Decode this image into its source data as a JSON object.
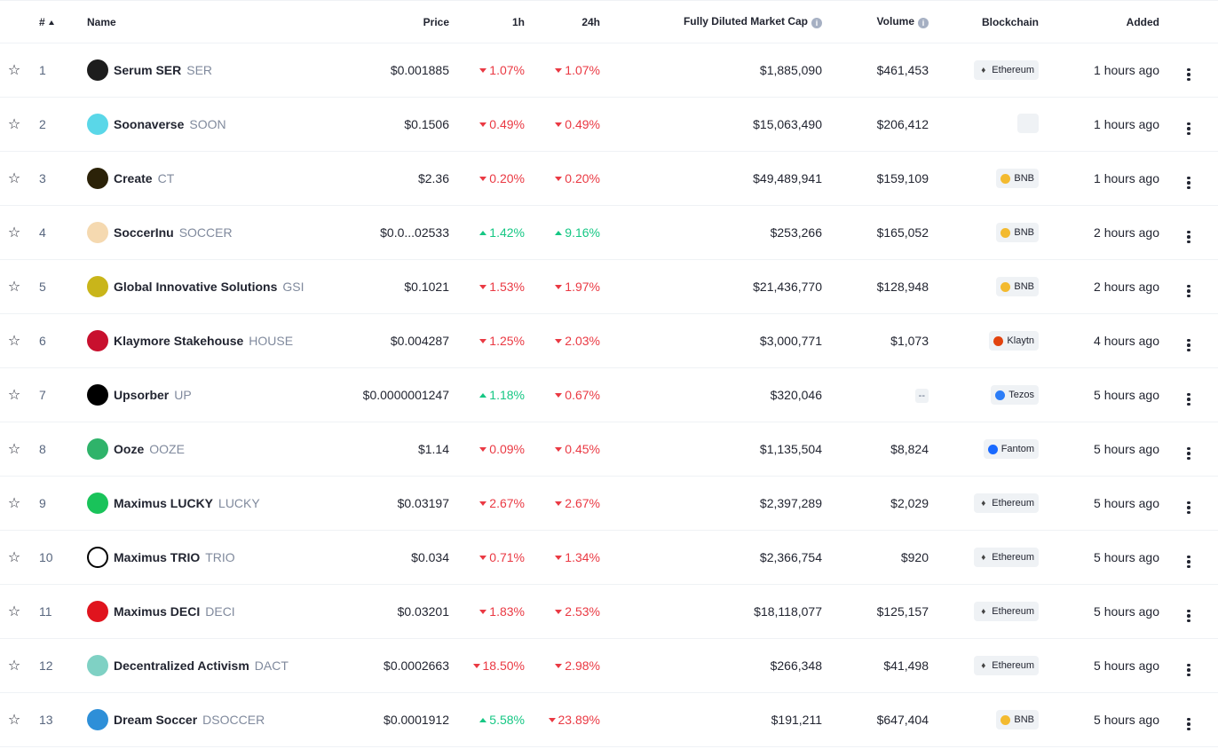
{
  "header": {
    "rank": "#",
    "name": "Name",
    "price": "Price",
    "h1": "1h",
    "h24": "24h",
    "mcap": "Fully Diluted Market Cap",
    "volume": "Volume",
    "chain": "Blockchain",
    "added": "Added"
  },
  "colors": {
    "down": "#ea3943",
    "up": "#16c784",
    "muted": "#808a9d"
  },
  "rows": [
    {
      "rank": "1",
      "name": "Serum SER",
      "symbol": "SER",
      "icon": "serum-icon",
      "iconColor": "#1d1d1d",
      "price": "$0.001885",
      "h1": "1.07%",
      "h1dir": "down",
      "h24": "1.07%",
      "h24dir": "down",
      "mcap": "$1,885,090",
      "volume": "$461,453",
      "chain": "Ethereum",
      "chainIcon": "ethereum-icon",
      "added": "1 hours ago"
    },
    {
      "rank": "2",
      "name": "Soonaverse",
      "symbol": "SOON",
      "icon": "soonaverse-icon",
      "iconColor": "#5ad7e8",
      "price": "$0.1506",
      "h1": "0.49%",
      "h1dir": "down",
      "h24": "0.49%",
      "h24dir": "down",
      "mcap": "$15,063,490",
      "volume": "$206,412",
      "chain": "",
      "chainIcon": "",
      "added": "1 hours ago"
    },
    {
      "rank": "3",
      "name": "Create",
      "symbol": "CT",
      "icon": "create-icon",
      "iconColor": "#2b2208",
      "price": "$2.36",
      "h1": "0.20%",
      "h1dir": "down",
      "h24": "0.20%",
      "h24dir": "down",
      "mcap": "$49,489,941",
      "volume": "$159,109",
      "chain": "BNB",
      "chainIcon": "bnb-icon",
      "added": "1 hours ago"
    },
    {
      "rank": "4",
      "name": "SoccerInu",
      "symbol": "SOCCER",
      "icon": "soccerinu-icon",
      "iconColor": "#f5d9b0",
      "price": "$0.0...02533",
      "h1": "1.42%",
      "h1dir": "up",
      "h24": "9.16%",
      "h24dir": "up",
      "mcap": "$253,266",
      "volume": "$165,052",
      "chain": "BNB",
      "chainIcon": "bnb-icon",
      "added": "2 hours ago"
    },
    {
      "rank": "5",
      "name": "Global Innovative Solutions",
      "symbol": "GSI",
      "icon": "gsi-icon",
      "iconColor": "#c9b51a",
      "price": "$0.1021",
      "h1": "1.53%",
      "h1dir": "down",
      "h24": "1.97%",
      "h24dir": "down",
      "mcap": "$21,436,770",
      "volume": "$128,948",
      "chain": "BNB",
      "chainIcon": "bnb-icon",
      "added": "2 hours ago"
    },
    {
      "rank": "6",
      "name": "Klaymore Stakehouse",
      "symbol": "HOUSE",
      "icon": "klaymore-icon",
      "iconColor": "#c8102e",
      "price": "$0.004287",
      "h1": "1.25%",
      "h1dir": "down",
      "h24": "2.03%",
      "h24dir": "down",
      "mcap": "$3,000,771",
      "volume": "$1,073",
      "chain": "Klaytn",
      "chainIcon": "klaytn-icon",
      "added": "4 hours ago"
    },
    {
      "rank": "7",
      "name": "Upsorber",
      "symbol": "UP",
      "icon": "upsorber-icon",
      "iconColor": "#000000",
      "price": "$0.0000001247",
      "h1": "1.18%",
      "h1dir": "up",
      "h24": "0.67%",
      "h24dir": "down",
      "mcap": "$320,046",
      "volume": "--",
      "chain": "Tezos",
      "chainIcon": "tezos-icon",
      "added": "5 hours ago"
    },
    {
      "rank": "8",
      "name": "Ooze",
      "symbol": "OOZE",
      "icon": "ooze-icon",
      "iconColor": "#2fb36a",
      "price": "$1.14",
      "h1": "0.09%",
      "h1dir": "down",
      "h24": "0.45%",
      "h24dir": "down",
      "mcap": "$1,135,504",
      "volume": "$8,824",
      "chain": "Fantom",
      "chainIcon": "fantom-icon",
      "added": "5 hours ago"
    },
    {
      "rank": "9",
      "name": "Maximus LUCKY",
      "symbol": "LUCKY",
      "icon": "maximus-lucky-icon",
      "iconColor": "#19c35a",
      "price": "$0.03197",
      "h1": "2.67%",
      "h1dir": "down",
      "h24": "2.67%",
      "h24dir": "down",
      "mcap": "$2,397,289",
      "volume": "$2,029",
      "chain": "Ethereum",
      "chainIcon": "ethereum-icon",
      "added": "5 hours ago"
    },
    {
      "rank": "10",
      "name": "Maximus TRIO",
      "symbol": "TRIO",
      "icon": "maximus-trio-icon",
      "iconColor": "#ffffff",
      "price": "$0.034",
      "h1": "0.71%",
      "h1dir": "down",
      "h24": "1.34%",
      "h24dir": "down",
      "mcap": "$2,366,754",
      "volume": "$920",
      "chain": "Ethereum",
      "chainIcon": "ethereum-icon",
      "added": "5 hours ago"
    },
    {
      "rank": "11",
      "name": "Maximus DECI",
      "symbol": "DECI",
      "icon": "maximus-deci-icon",
      "iconColor": "#e0141e",
      "price": "$0.03201",
      "h1": "1.83%",
      "h1dir": "down",
      "h24": "2.53%",
      "h24dir": "down",
      "mcap": "$18,118,077",
      "volume": "$125,157",
      "chain": "Ethereum",
      "chainIcon": "ethereum-icon",
      "added": "5 hours ago"
    },
    {
      "rank": "12",
      "name": "Decentralized Activism",
      "symbol": "DACT",
      "icon": "dact-icon",
      "iconColor": "#7fd1c4",
      "price": "$0.0002663",
      "h1": "18.50%",
      "h1dir": "down",
      "h24": "2.98%",
      "h24dir": "down",
      "mcap": "$266,348",
      "volume": "$41,498",
      "chain": "Ethereum",
      "chainIcon": "ethereum-icon",
      "added": "5 hours ago"
    },
    {
      "rank": "13",
      "name": "Dream Soccer",
      "symbol": "DSOCCER",
      "icon": "dream-soccer-icon",
      "iconColor": "#2e8fd8",
      "price": "$0.0001912",
      "h1": "5.58%",
      "h1dir": "up",
      "h24": "23.89%",
      "h24dir": "down",
      "mcap": "$191,211",
      "volume": "$647,404",
      "chain": "BNB",
      "chainIcon": "bnb-icon",
      "added": "5 hours ago"
    }
  ]
}
